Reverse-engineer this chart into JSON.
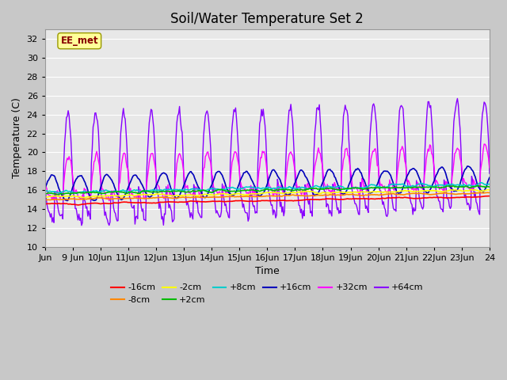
{
  "title": "Soil/Water Temperature Set 2",
  "xlabel": "Time",
  "ylabel": "Temperature (C)",
  "ylim": [
    10,
    33
  ],
  "yticks": [
    10,
    12,
    14,
    16,
    18,
    20,
    22,
    24,
    26,
    28,
    30,
    32
  ],
  "fig_bg": "#c8c8c8",
  "plot_bg": "#e8e8e8",
  "series": [
    {
      "label": "-16cm",
      "color": "#ff0000"
    },
    {
      "label": "-8cm",
      "color": "#ff8800"
    },
    {
      "label": "-2cm",
      "color": "#ffff00"
    },
    {
      "label": "+2cm",
      "color": "#00bb00"
    },
    {
      "label": "+8cm",
      "color": "#00cccc"
    },
    {
      "label": "+16cm",
      "color": "#0000bb"
    },
    {
      "label": "+32cm",
      "color": "#ff00ff"
    },
    {
      "label": "+64cm",
      "color": "#8800ff"
    }
  ],
  "n_points": 500,
  "x_start": 8.0,
  "x_end": 24.0,
  "xtick_positions": [
    8,
    9,
    10,
    11,
    12,
    13,
    14,
    15,
    16,
    17,
    18,
    19,
    20,
    21,
    22,
    23,
    24
  ],
  "xtick_labels": [
    "Jun",
    "9 Jun",
    "10Jun",
    "11Jun",
    "12Jun",
    "13Jun",
    "14Jun",
    "15Jun",
    "16Jun",
    "17Jun",
    "18Jun",
    "19Jun",
    "20Jun",
    "21Jun",
    "22Jun",
    "23Jun",
    "24"
  ],
  "watermark_text": "EE_met",
  "watermark_color": "#880000",
  "watermark_bg": "#ffff99",
  "title_fontsize": 12,
  "axis_fontsize": 9,
  "tick_fontsize": 8,
  "legend_fontsize": 8
}
